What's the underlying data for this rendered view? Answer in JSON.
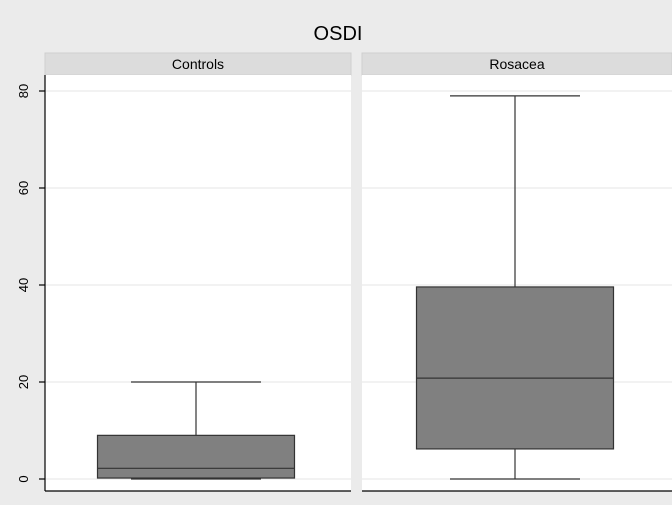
{
  "chart_data": {
    "type": "box",
    "title": "OSDI",
    "ylim": [
      0,
      80
    ],
    "yticks": [
      0,
      20,
      40,
      60,
      80
    ],
    "grid": true,
    "facets": [
      {
        "label": "Controls",
        "min": 0,
        "q1": 0.2,
        "median": 2.2,
        "q3": 9,
        "max": 20
      },
      {
        "label": "Rosacea",
        "min": 0,
        "q1": 6.2,
        "median": 20.8,
        "q3": 39.6,
        "max": 79
      }
    ],
    "colors": {
      "box": "#808080",
      "strip": "#dcdcdc",
      "background": "#ebebeb",
      "panel": "#ffffff"
    }
  }
}
